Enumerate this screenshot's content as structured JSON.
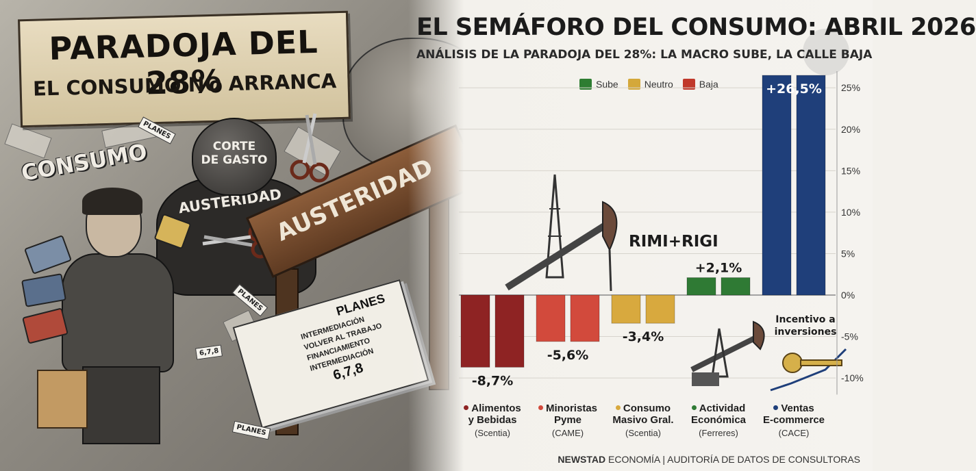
{
  "illustration": {
    "sign_title": "PARADOJA DEL 28%",
    "sign_subtitle": "EL CONSUMO NO ARRANCA",
    "wall_text": "CONSUMO",
    "goon_head_line1": "CORTE",
    "goon_head_line2": "DE GASTO",
    "goon_body_text": "AUSTERIDAD",
    "barrier_text": "AUSTERIDAD",
    "papers_title": "PLANES",
    "papers_lines": [
      "INTERMEDIACIÓN",
      "VOLVER AL TRABAJO",
      "FINANCIAMIENTO",
      "INTERMEDIACIÓN"
    ],
    "papers_number": "6,7,8",
    "flyers": [
      "PLANES",
      "PLANES",
      "6,7,8",
      "PLANES"
    ]
  },
  "header": {
    "title": "EL SEMÁFORO DEL CONSUMO: ABRIL 2026",
    "subtitle": "ANÁLISIS DE LA PARADOJA DEL 28%: LA MACRO SUBE, LA CALLE BAJA"
  },
  "legend": [
    {
      "label": "Sube",
      "color": "#2e7d32"
    },
    {
      "label": "Neutro",
      "color": "#d4a83a"
    },
    {
      "label": "Baja",
      "color": "#c0392b"
    }
  ],
  "annotations": {
    "rimi": "RIMI+RIGI",
    "incentive_line1": "Incentivo a",
    "incentive_line2": "inversiones"
  },
  "chart_data": {
    "type": "bar",
    "title": "EL SEMÁFORO DEL CONSUMO: ABRIL 2026",
    "ylim": [
      -12,
      27
    ],
    "yticks": [
      -10,
      -5,
      0,
      5,
      10,
      15,
      20,
      25
    ],
    "ytick_labels": [
      "-10%",
      "-5%",
      "0%",
      "5%",
      "10%",
      "15%",
      "20%",
      "25%"
    ],
    "grid": true,
    "legend_position": "top",
    "categories": [
      "Alimentos y Bebidas",
      "Minoristas Pyme",
      "Consumo Masivo Gral.",
      "Actividad Económica",
      "Ventas E-commerce"
    ],
    "category_lines": [
      [
        "Alimentos",
        "y Bebidas"
      ],
      [
        "Minoristas",
        "Pyme"
      ],
      [
        "Consumo",
        "Masivo Gral."
      ],
      [
        "Actividad",
        "Económica"
      ],
      [
        "Ventas",
        "E-commerce"
      ]
    ],
    "sources": [
      "(Scentia)",
      "(CAME)",
      "(Scentia)",
      "(Ferreres)",
      "(CACE)"
    ],
    "values": [
      -8.7,
      -5.6,
      -3.4,
      2.1,
      26.5
    ],
    "value_labels": [
      "-8,7%",
      "-5,6%",
      "-3,4%",
      "+2,1%",
      "+26,5%"
    ],
    "status": [
      "Baja",
      "Baja",
      "Neutro",
      "Sube",
      "Sube"
    ],
    "colors": [
      "#8e2323",
      "#d24a3c",
      "#d8a93e",
      "#2f7a34",
      "#1f3f7a"
    ]
  },
  "footer": {
    "brand": "NEWSTAD",
    "section": "ECONOMÍA",
    "separator": "|",
    "note": "AUDITORÍA DE DATOS DE CONSULTORAS"
  }
}
